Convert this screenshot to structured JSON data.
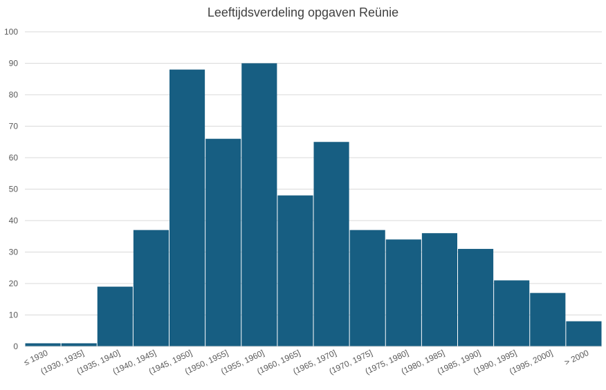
{
  "chart_data": {
    "type": "bar",
    "title": "Leeftijdsverdeling  opgaven Reünie",
    "categories": [
      "≤ 1930",
      "(1930, 1935]",
      "(1935, 1940]",
      "(1940, 1945]",
      "(1945, 1950]",
      "(1950, 1955]",
      "(1955, 1960]",
      "(1960, 1965]",
      "(1965, 1970]",
      "(1970, 1975]",
      "(1975, 1980]",
      "(1980, 1985]",
      "(1985, 1990]",
      "(1990, 1995]",
      "(1995, 2000]",
      "> 2000"
    ],
    "values": [
      1,
      1,
      19,
      37,
      88,
      66,
      90,
      48,
      65,
      37,
      34,
      36,
      31,
      21,
      17,
      8
    ],
    "ylim": [
      0,
      100
    ],
    "yticks": [
      0,
      10,
      20,
      30,
      40,
      50,
      60,
      70,
      80,
      90,
      100
    ],
    "grid": true,
    "colors": {
      "bar": "#175E82",
      "grid": "#D9D9D9",
      "axis_text": "#595959",
      "title": "#404040"
    }
  }
}
